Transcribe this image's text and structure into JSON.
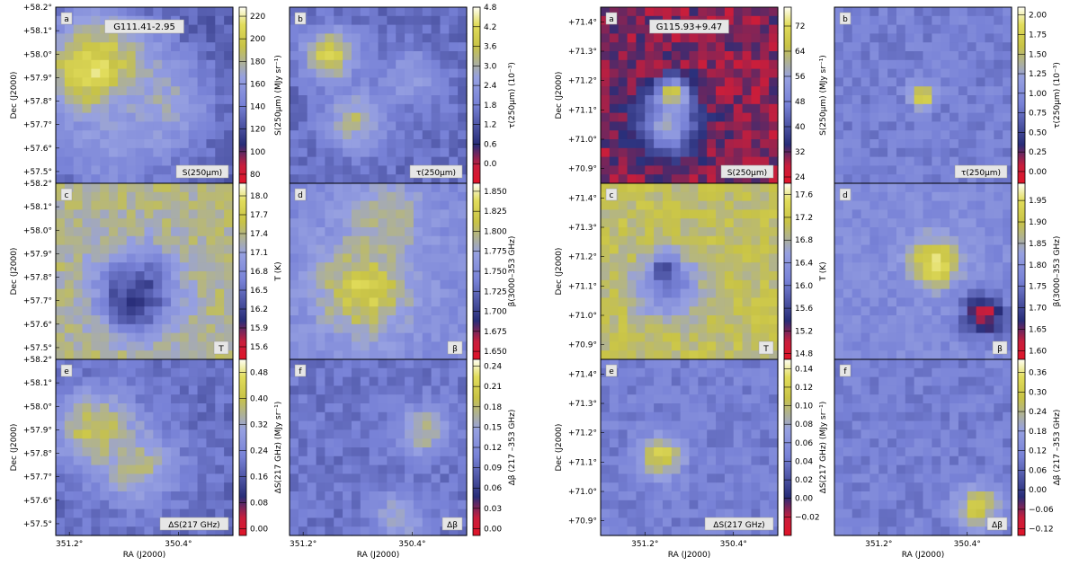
{
  "chart_data": [
    {
      "type": "heatmap",
      "source": "G111.41-2.95",
      "dec_ticks": [
        "+58.2°",
        "+58.1°",
        "+58.0°",
        "+57.9°",
        "+57.8°",
        "+57.7°",
        "+57.6°",
        "+57.5°"
      ],
      "ra_ticks": [
        "351.2°",
        "350.4°"
      ],
      "xlabel": "RA (J2000)",
      "ylabel": "Dec (J2000)",
      "panels": [
        {
          "letter": "a",
          "name": "S(250μm)",
          "colorbar_label": "S(250μm) (MJy sr⁻¹)",
          "colorbar_ticks": [
            "220",
            "200",
            "180",
            "160",
            "140",
            "120",
            "100",
            "80"
          ],
          "colorbar_range": [
            72,
            228
          ],
          "features": [
            {
              "ra": 351.0,
              "dec": 57.92,
              "level": 0.95,
              "width": 0.22
            },
            {
              "ra": 350.55,
              "dec": 57.78,
              "level": 0.65,
              "width": 0.2
            },
            {
              "ra": 350.9,
              "dec": 57.6,
              "level": 0.55,
              "width": 0.2
            }
          ],
          "base_level": 0.35
        },
        {
          "letter": "b",
          "name": "τ(250μm)",
          "colorbar_label": "τ(250μm) (10⁻³)",
          "colorbar_ticks": [
            "4.8",
            "4.2",
            "3.6",
            "3.0",
            "2.4",
            "1.8",
            "1.2",
            "0.6",
            "0.0"
          ],
          "colorbar_range": [
            -0.6,
            4.8
          ],
          "features": [
            {
              "ra": 351.0,
              "dec": 58.0,
              "level": 0.85,
              "width": 0.1
            },
            {
              "ra": 350.8,
              "dec": 57.72,
              "level": 0.7,
              "width": 0.12
            },
            {
              "ra": 350.4,
              "dec": 57.9,
              "level": 0.6,
              "width": 0.1
            }
          ],
          "base_level": 0.4
        },
        {
          "letter": "c",
          "name": "T",
          "colorbar_label": "T (K)",
          "colorbar_ticks": [
            "18.0",
            "17.7",
            "17.4",
            "17.1",
            "16.8",
            "16.5",
            "16.2",
            "15.9",
            "15.6"
          ],
          "colorbar_range": [
            15.4,
            18.2
          ],
          "features": [
            {
              "ra": 350.75,
              "dec": 57.68,
              "level": 0.05,
              "width": 0.08
            },
            {
              "ra": 350.7,
              "dec": 57.75,
              "level": 0.3,
              "width": 0.16
            }
          ],
          "base_level": 0.7
        },
        {
          "letter": "d",
          "name": "β",
          "colorbar_label": "β(3000–353 GHz)",
          "colorbar_ticks": [
            "1.850",
            "1.825",
            "1.800",
            "1.775",
            "1.750",
            "1.725",
            "1.700",
            "1.675",
            "1.650"
          ],
          "colorbar_range": [
            1.64,
            1.86
          ],
          "features": [
            {
              "ra": 350.75,
              "dec": 57.75,
              "level": 0.85,
              "width": 0.18
            },
            {
              "ra": 350.6,
              "dec": 58.05,
              "level": 0.7,
              "width": 0.15
            }
          ],
          "base_level": 0.5
        },
        {
          "letter": "e",
          "name": "ΔS(217 GHz)",
          "colorbar_label": "ΔS(217 GHz) (MJy sr⁻¹)",
          "colorbar_ticks": [
            "0.48",
            "0.40",
            "0.32",
            "0.24",
            "0.16",
            "0.08",
            "0.00"
          ],
          "colorbar_range": [
            -0.02,
            0.52
          ],
          "features": [
            {
              "ra": 351.0,
              "dec": 57.9,
              "level": 0.8,
              "width": 0.15
            },
            {
              "ra": 350.7,
              "dec": 57.75,
              "level": 0.7,
              "width": 0.15
            }
          ],
          "base_level": 0.4
        },
        {
          "letter": "f",
          "name": "Δβ",
          "colorbar_label": "Δβ (217 –353 GHz)",
          "colorbar_ticks": [
            "0.24",
            "0.21",
            "0.18",
            "0.15",
            "0.12",
            "0.09",
            "0.06",
            "0.03",
            "0.00"
          ],
          "colorbar_range": [
            -0.01,
            0.25
          ],
          "features": [
            {
              "ra": 350.3,
              "dec": 57.9,
              "level": 0.7,
              "width": 0.1
            },
            {
              "ra": 350.5,
              "dec": 57.52,
              "level": 0.65,
              "width": 0.1
            }
          ],
          "base_level": 0.42
        }
      ]
    },
    {
      "type": "heatmap",
      "source": "G115.93+9.47",
      "dec_ticks": [
        "+71.4°",
        "+71.3°",
        "+71.2°",
        "+71.1°",
        "+71.0°",
        "+70.9°"
      ],
      "ra_ticks": [
        "351.2°",
        "350.4°"
      ],
      "xlabel": "RA (J2000)",
      "ylabel": "Dec (J2000)",
      "panels": [
        {
          "letter": "a",
          "name": "S(250μm)",
          "colorbar_label": "S(250μm) (MJy sr⁻¹)",
          "colorbar_ticks": [
            "72",
            "64",
            "56",
            "48",
            "40",
            "32",
            "24"
          ],
          "colorbar_range": [
            22,
            78
          ],
          "features": [
            {
              "ra": 350.95,
              "dec": 71.15,
              "level": 0.95,
              "width": 0.06
            },
            {
              "ra": 351.0,
              "dec": 71.05,
              "level": 0.6,
              "width": 0.12
            }
          ],
          "base_level": 0.15
        },
        {
          "letter": "b",
          "name": "τ(250μm)",
          "colorbar_label": "τ(250μm) (10⁻³)",
          "colorbar_ticks": [
            "2.00",
            "1.75",
            "1.50",
            "1.25",
            "1.00",
            "0.75",
            "0.50",
            "0.25",
            "0.00"
          ],
          "colorbar_range": [
            -0.15,
            2.1
          ],
          "features": [
            {
              "ra": 350.8,
              "dec": 71.15,
              "level": 0.9,
              "width": 0.05
            }
          ],
          "base_level": 0.45
        },
        {
          "letter": "c",
          "name": "T",
          "colorbar_label": "T (K)",
          "colorbar_ticks": [
            "17.6",
            "17.2",
            "16.8",
            "16.4",
            "16.0",
            "15.6",
            "15.2",
            "14.8"
          ],
          "colorbar_range": [
            14.7,
            17.8
          ],
          "features": [
            {
              "ra": 351.0,
              "dec": 71.15,
              "level": 0.02,
              "width": 0.05
            },
            {
              "ra": 351.0,
              "dec": 71.1,
              "level": 0.4,
              "width": 0.12
            }
          ],
          "base_level": 0.75
        },
        {
          "letter": "d",
          "name": "β",
          "colorbar_label": "β(3000–353 GHz)",
          "colorbar_ticks": [
            "1.95",
            "1.90",
            "1.85",
            "1.80",
            "1.75",
            "1.70",
            "1.65",
            "1.60"
          ],
          "colorbar_range": [
            1.58,
            1.99
          ],
          "features": [
            {
              "ra": 350.7,
              "dec": 71.18,
              "level": 0.9,
              "width": 0.1
            },
            {
              "ra": 350.25,
              "dec": 71.0,
              "level": 0.1,
              "width": 0.08
            }
          ],
          "base_level": 0.5
        },
        {
          "letter": "e",
          "name": "ΔS(217 GHz)",
          "colorbar_label": "ΔS(217 GHz) (MJy sr⁻¹)",
          "colorbar_ticks": [
            "0.14",
            "0.12",
            "0.10",
            "0.08",
            "0.06",
            "0.04",
            "0.02",
            "0.00",
            "−0.02"
          ],
          "colorbar_range": [
            -0.04,
            0.15
          ],
          "features": [
            {
              "ra": 351.05,
              "dec": 71.12,
              "level": 0.85,
              "width": 0.08
            }
          ],
          "base_level": 0.45
        },
        {
          "letter": "f",
          "name": "Δβ",
          "colorbar_label": "Δβ (217 –353 GHz)",
          "colorbar_ticks": [
            "0.36",
            "0.30",
            "0.24",
            "0.18",
            "0.12",
            "0.06",
            "0.00",
            "−0.06",
            "−0.12"
          ],
          "colorbar_range": [
            -0.14,
            0.4
          ],
          "features": [
            {
              "ra": 350.3,
              "dec": 70.95,
              "level": 0.85,
              "width": 0.08
            }
          ],
          "base_level": 0.45
        }
      ]
    }
  ]
}
